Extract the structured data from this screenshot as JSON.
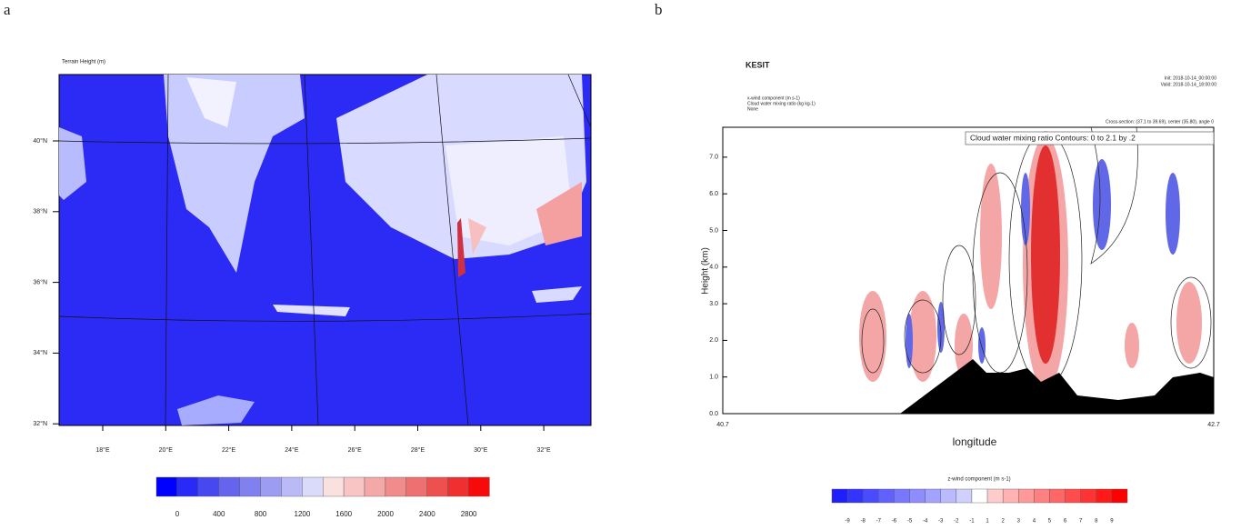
{
  "panel_a": {
    "label": "a",
    "title": "Terrain Height (m)",
    "lat_labels": [
      "40°N",
      "38°N",
      "36°N",
      "34°N",
      "32°N"
    ],
    "lon_labels": [
      "18°E",
      "20°E",
      "22°E",
      "24°E",
      "26°E",
      "28°E",
      "30°E",
      "32°E"
    ],
    "colorbar_labels": [
      "0",
      "400",
      "800",
      "1200",
      "1600",
      "2000",
      "2400",
      "2800"
    ]
  },
  "panel_b": {
    "label": "b",
    "title": "KESIT",
    "init": "Init: 2018-10-14_00:00:00",
    "valid": "Valid: 2018-10-14_18:00:00",
    "field_1": "x-wind component (m s-1)",
    "field_2": "Cloud water mixing ratio (kg kg-1)",
    "field_3": "None",
    "section": "Cross-section: (37.1 to 39.69), center (35.80), angle 0",
    "legend": "Cloud water mixing ratio Contours: 0 to 2.1 by .2",
    "y_title": "Height (km)",
    "y_ticks": [
      "0.0",
      "1.0",
      "2.0",
      "3.0",
      "4.0",
      "5.0",
      "6.0",
      "7.0"
    ],
    "x_start": "40.7",
    "x_end": "42.7",
    "x_title": "longitude",
    "colorbar_title": "z-wind component (m s-1)",
    "colorbar_labels": [
      "-9",
      "-8",
      "-7",
      "-6",
      "-5",
      "-4",
      "-3",
      "-2",
      "-1",
      "1",
      "2",
      "3",
      "4",
      "5",
      "6",
      "7",
      "8",
      "9"
    ]
  }
}
